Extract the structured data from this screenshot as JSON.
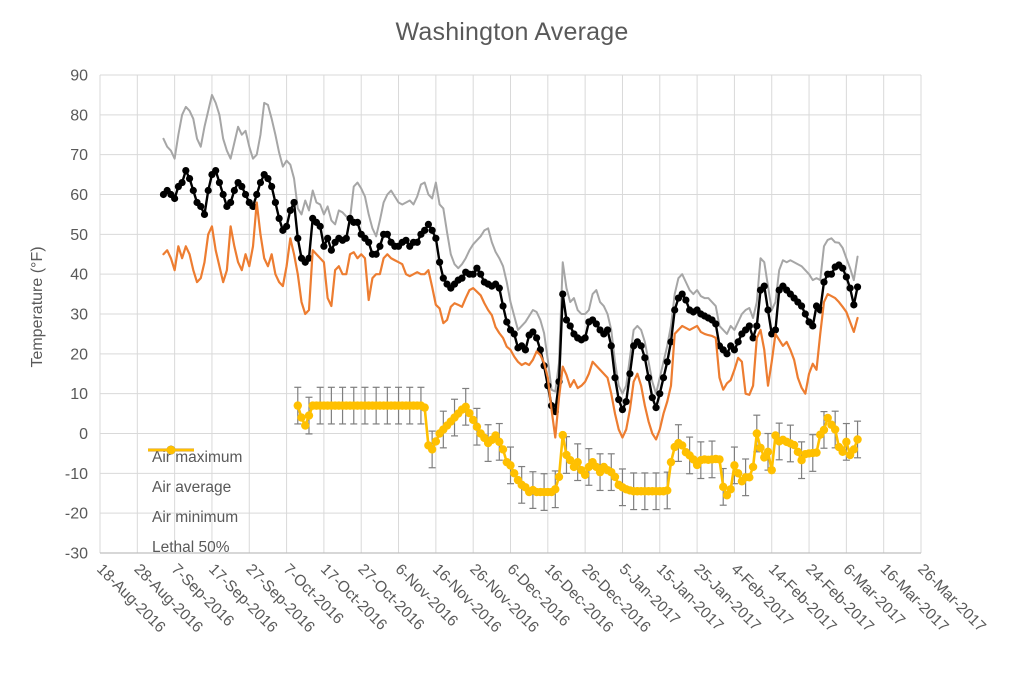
{
  "chart_data": {
    "type": "line",
    "title": "Washington Average",
    "xlabel": "",
    "ylabel": "Temperature (°F)",
    "ylim": [
      -30,
      90
    ],
    "y_ticks": [
      90,
      80,
      70,
      60,
      50,
      40,
      30,
      20,
      10,
      0,
      -10,
      -20,
      -30
    ],
    "grid": true,
    "legend_position": "inside lower-left",
    "x_axis": {
      "start_label": "18-Aug-2016",
      "interval_days": 10,
      "total_days": 220,
      "tick_labels": [
        "18-Aug-2016",
        "28-Aug-2016",
        "7-Sep-2016",
        "17-Sep-2016",
        "27-Sep-2016",
        "7-Oct-2016",
        "17-Oct-2016",
        "27-Oct-2016",
        "6-Nov-2016",
        "16-Nov-2016",
        "26-Nov-2016",
        "6-Dec-2016",
        "16-Dec-2016",
        "26-Dec-2016",
        "5-Jan-2017",
        "15-Jan-2017",
        "25-Jan-2017",
        "4-Feb-2017",
        "14-Feb-2017",
        "24-Feb-2017",
        "6-Mar-2017",
        "16-Mar-2017",
        "26-Mar-2017"
      ]
    },
    "cadence": "daily",
    "series": [
      {
        "name": "Air maximum",
        "color": "#A6A6A6",
        "marker": "none",
        "line_width": 2,
        "start_date": "4-Sep-2016",
        "start_offset_days": 17,
        "values": [
          74,
          72,
          71,
          69,
          75,
          80,
          82,
          81,
          79,
          74,
          72,
          77,
          81,
          85,
          83,
          80,
          74,
          71,
          69,
          73,
          77,
          75,
          76,
          72,
          69,
          70,
          75,
          83,
          82.5,
          79,
          75,
          70.5,
          67,
          68.5,
          67.5,
          64,
          56.5,
          55,
          58.5,
          56,
          61,
          58,
          57.5,
          55,
          57,
          53.5,
          52.5,
          56,
          55.5,
          54.5,
          54,
          62,
          63,
          61.5,
          59.5,
          55,
          51.5,
          49.5,
          53.5,
          58,
          60,
          61,
          59.5,
          58,
          57.5,
          58,
          58.5,
          57.5,
          59.5,
          62.5,
          63,
          60,
          59,
          63,
          57.5,
          56.5,
          50.5,
          45,
          42.5,
          41.5,
          42.5,
          44,
          46,
          47.5,
          48.5,
          49.5,
          51,
          51.5,
          48,
          45.6,
          44,
          42,
          38,
          33,
          29.5,
          26,
          27,
          28,
          29.5,
          31,
          30.5,
          28.5,
          25.2,
          18.5,
          11,
          10.5,
          17.7,
          43,
          36.5,
          33,
          34,
          31,
          30,
          30,
          31,
          35,
          36,
          33,
          32,
          30,
          26,
          18,
          12,
          10,
          12,
          19,
          26,
          27,
          26,
          23,
          18,
          13,
          10,
          14,
          18,
          22,
          27,
          35,
          39,
          40,
          38,
          36,
          35,
          36,
          34.5,
          34,
          34,
          33,
          32,
          27,
          26,
          25,
          27,
          26,
          28,
          30,
          31,
          31.5,
          29,
          33,
          44,
          43,
          37,
          31,
          33,
          41,
          43.5,
          43,
          43.5,
          43,
          42.5,
          42,
          41,
          40,
          38.5,
          39,
          38.5,
          47,
          48.6,
          49,
          48,
          47.9,
          46.6,
          44,
          41.5,
          38.5,
          44.4
        ]
      },
      {
        "name": "Air average",
        "color": "#000000",
        "marker": "circle",
        "marker_radius": 3.6,
        "line_width": 2.4,
        "start_date": "4-Sep-2016",
        "start_offset_days": 17,
        "values": [
          60,
          61,
          60,
          59,
          62,
          63,
          66,
          64,
          61,
          58,
          57,
          55,
          61,
          65,
          66,
          63,
          60,
          57,
          58,
          61,
          63,
          62,
          60,
          58,
          57,
          60,
          63,
          65,
          64,
          62,
          58,
          54,
          51,
          52,
          56,
          58,
          49,
          44,
          43,
          44,
          54,
          53,
          52,
          47,
          49,
          46,
          48,
          49,
          48.5,
          49,
          54,
          53,
          53,
          50,
          49,
          48,
          45,
          45,
          47,
          50,
          50,
          48,
          47,
          47,
          48,
          48.5,
          47,
          48,
          48,
          50,
          51,
          52.5,
          51,
          49,
          43,
          39,
          37.5,
          36.5,
          37.5,
          38.5,
          39,
          40.5,
          40,
          40,
          41.5,
          40,
          38,
          37.5,
          37,
          37.5,
          36.5,
          32,
          28,
          26,
          25,
          21.5,
          22,
          21,
          24.7,
          25.5,
          24,
          21,
          17,
          12,
          7,
          5.5,
          13,
          35,
          28.5,
          27,
          25,
          24,
          23.5,
          24,
          28,
          28.5,
          27.5,
          26,
          25,
          26,
          22,
          14,
          8.5,
          6,
          8,
          15,
          22,
          23,
          22,
          19,
          14,
          9,
          6.5,
          10,
          14,
          18,
          23,
          31,
          34,
          35,
          33.5,
          31,
          30.5,
          31,
          30,
          29.5,
          29,
          28.5,
          27.5,
          22,
          21,
          20,
          22,
          21,
          23,
          25,
          26,
          27,
          24,
          27,
          36,
          37,
          31,
          25,
          26,
          36,
          37,
          36,
          35,
          34,
          33,
          32,
          30,
          28,
          27,
          32,
          31,
          38,
          40,
          40,
          41.8,
          42.3,
          41.5,
          39.3,
          36.5,
          32.3,
          36.8
        ]
      },
      {
        "name": "Air minimum",
        "color": "#ED7D31",
        "marker": "none",
        "line_width": 2.2,
        "start_date": "4-Sep-2016",
        "start_offset_days": 17,
        "values": [
          45,
          46,
          44,
          41,
          47,
          44,
          47,
          45,
          41,
          38,
          39,
          43,
          50,
          52,
          46,
          42,
          38,
          41,
          52,
          47,
          43,
          41,
          45,
          42,
          47,
          58,
          50,
          44,
          42,
          45,
          40,
          38,
          37,
          42,
          49,
          45,
          40,
          33,
          30,
          31,
          46,
          45,
          44,
          43,
          34,
          32,
          41,
          42,
          40,
          40,
          45,
          45.5,
          44,
          45,
          44,
          33.5,
          39,
          40,
          40,
          44,
          45,
          44,
          43.5,
          43,
          42.5,
          40,
          39.5,
          40,
          40.5,
          40,
          40,
          41,
          36.8,
          32.3,
          31.4,
          27.7,
          28.5,
          31.8,
          32.7,
          32.3,
          31.8,
          34,
          36,
          36.5,
          35.6,
          34.7,
          32.7,
          31,
          29.7,
          26.7,
          25.2,
          24,
          21.8,
          21,
          19.3,
          18,
          17.2,
          17.7,
          17.2,
          18.5,
          20.6,
          19.7,
          17.7,
          14,
          6,
          -1,
          9,
          16.8,
          14.7,
          11.7,
          13.4,
          11.4,
          12,
          13,
          15,
          18,
          17,
          16,
          15,
          14,
          10,
          5,
          1,
          -1,
          1,
          6,
          13,
          15,
          12,
          7,
          3,
          0,
          -1.5,
          1,
          5,
          8,
          12,
          25,
          26,
          27,
          26.5,
          26,
          26.5,
          27,
          25.5,
          25,
          24.7,
          24.5,
          24,
          14,
          11,
          12.6,
          13.4,
          16,
          19,
          18,
          10,
          9.7,
          12,
          24,
          26,
          21,
          12,
          18,
          25,
          23.5,
          22,
          23,
          21,
          18.5,
          14,
          11.5,
          10,
          15,
          17.5,
          16,
          25,
          33,
          35,
          34.5,
          34,
          33,
          31.8,
          30.5,
          28,
          25.5,
          29
        ]
      },
      {
        "name": "Lethal 50%",
        "color": "#FFC000",
        "marker": "circle",
        "marker_radius": 4.2,
        "line_width": 2.6,
        "start_date": "10-Oct-2016",
        "start_offset_days": 53,
        "error_bar_plus_minus": 4.6,
        "error_bar_every_n_points": 3,
        "error_bar_color": "#7F7F7F",
        "values": [
          7,
          4,
          2,
          4.5,
          7,
          7,
          7,
          7,
          7,
          7,
          7,
          7,
          7,
          7,
          7,
          7,
          7,
          7,
          7,
          7,
          7,
          7,
          7,
          7,
          7,
          7,
          7,
          7,
          7,
          7,
          7,
          7,
          7,
          7,
          6.5,
          -3,
          -4,
          -2,
          0,
          1,
          2,
          3,
          4,
          5,
          6,
          6.7,
          5.1,
          3.4,
          1.7,
          0,
          -1.1,
          -2.4,
          -1.6,
          -0.5,
          -2.1,
          -4,
          -7.2,
          -8,
          -10,
          -11.7,
          -12.9,
          -13.5,
          -14.7,
          -14.2,
          -14.7,
          -14.7,
          -14.7,
          -14.7,
          -14.7,
          -14,
          -10.9,
          -0.4,
          -5.4,
          -6.7,
          -8.4,
          -7.2,
          -9.2,
          -10.4,
          -8.4,
          -7.2,
          -8.4,
          -9.7,
          -8.4,
          -9.2,
          -9.7,
          -10.9,
          -12.9,
          -13.5,
          -14,
          -14.3,
          -14.5,
          -14.5,
          -14.5,
          -14.5,
          -14.5,
          -14.5,
          -14.5,
          -14.5,
          -14.5,
          -14.3,
          -7.2,
          -3.4,
          -2.4,
          -3,
          -4.7,
          -5.5,
          -6.5,
          -7.9,
          -6.7,
          -6.5,
          -6.6,
          -6.5,
          -6.4,
          -6.5,
          -13.4,
          -15.5,
          -14,
          -8,
          -10,
          -12,
          -11,
          -11,
          -8.4,
          0,
          -3.6,
          -6,
          -4.6,
          -9.2,
          -0.5,
          -2,
          -1.6,
          -2.1,
          -2.5,
          -2.9,
          -4.6,
          -6.7,
          -5.2,
          -5,
          -4.9,
          -4.8,
          -0.3,
          0.9,
          3.9,
          2.2,
          1,
          -3.4,
          -4.6,
          -2.1,
          -5.4,
          -4,
          -1.5
        ]
      }
    ],
    "colors": {
      "gridline": "#D9D9D9",
      "axis_line": "#BFBFBF",
      "text": "#595959"
    }
  }
}
